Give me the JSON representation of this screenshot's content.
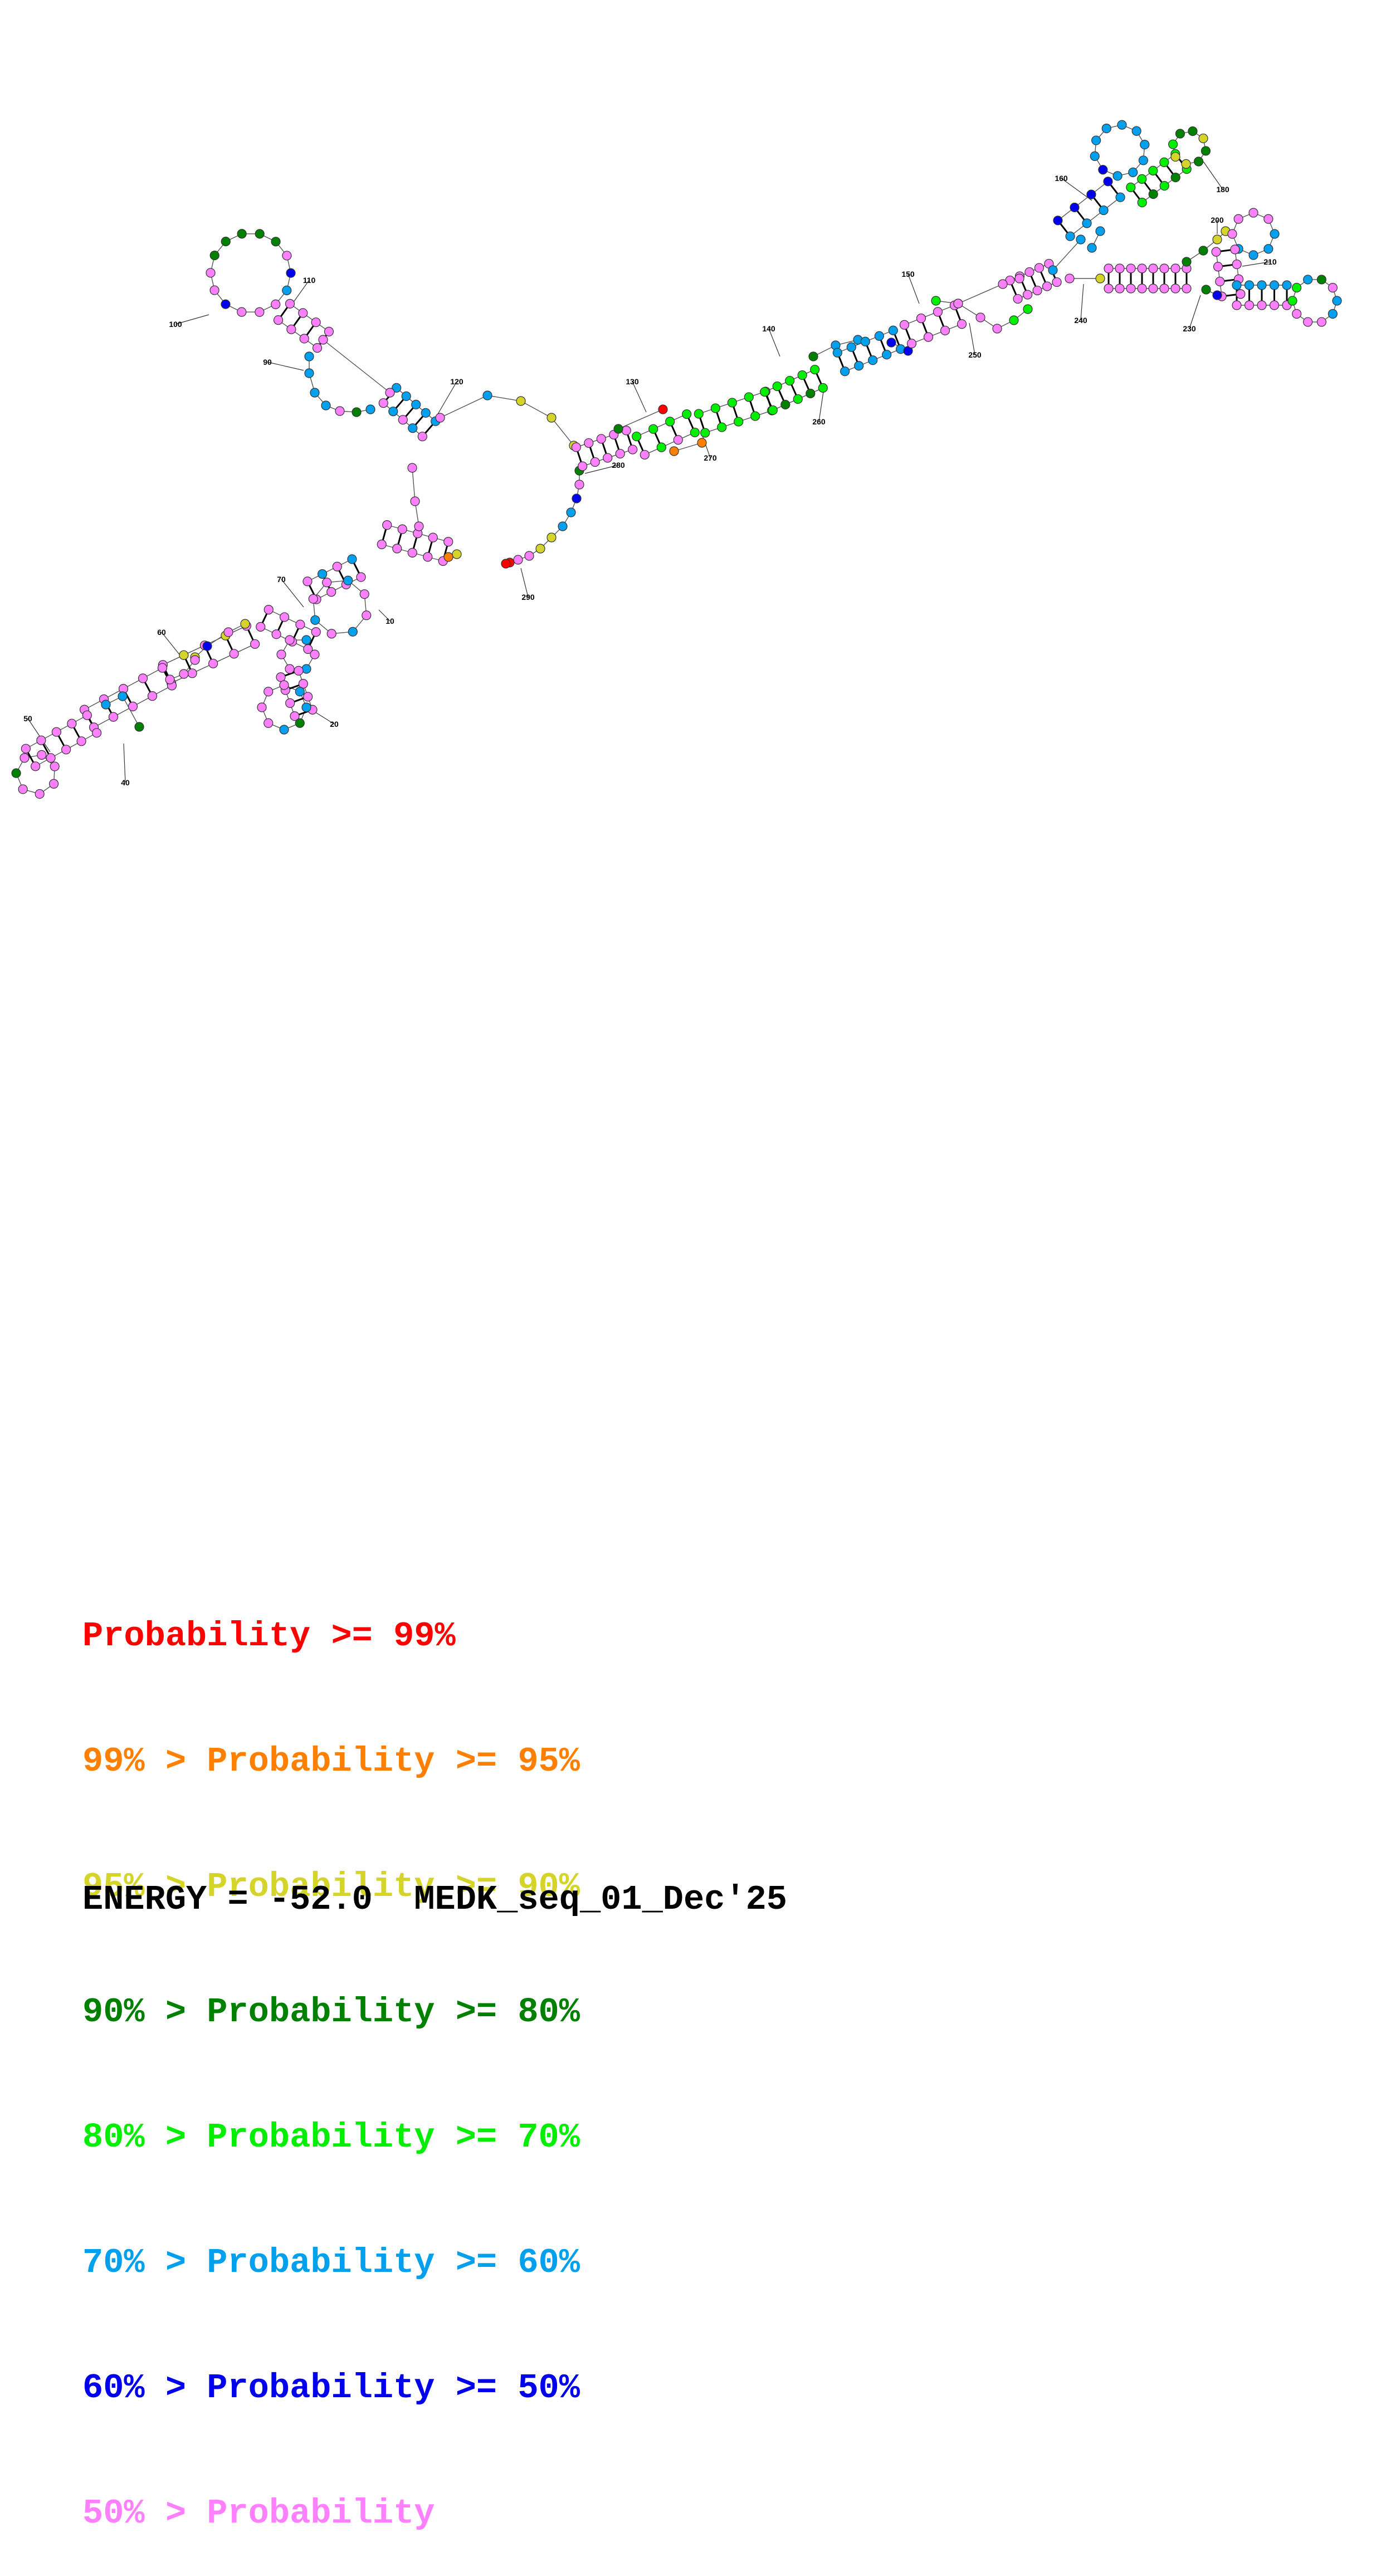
{
  "diagram": {
    "position_labels": [
      "10",
      "20",
      "40",
      "50",
      "60",
      "70",
      "90",
      "100",
      "110",
      "120",
      "130",
      "140",
      "150",
      "160",
      "180",
      "200",
      "210",
      "230",
      "240",
      "250",
      "260",
      "270",
      "280",
      "290"
    ],
    "probability_colors": {
      "p99": "#ff0000",
      "p95": "#ff8000",
      "p90": "#d4d42a",
      "p80": "#008000",
      "p70": "#00ee00",
      "p60": "#00a0ee",
      "p50": "#0000ee",
      "plow": "#ff80ff"
    }
  },
  "legend": {
    "rows": [
      {
        "prefix": "",
        "text": "Probability >= 99%",
        "color": "#ff0000"
      },
      {
        "prefix": "99% > ",
        "text": "Probability >= 95%",
        "color": "#ff8000"
      },
      {
        "prefix": "95% > ",
        "text": "Probability >= 90%",
        "color": "#d4d42a"
      },
      {
        "prefix": "90% > ",
        "text": "Probability >= 80%",
        "color": "#008000"
      },
      {
        "prefix": "80% > ",
        "text": "Probability >= 70%",
        "color": "#00ee00"
      },
      {
        "prefix": "70% > ",
        "text": "Probability >= 60%",
        "color": "#00a0ee"
      },
      {
        "prefix": "60% > ",
        "text": "Probability >= 50%",
        "color": "#0000ee"
      },
      {
        "prefix": "50% > ",
        "text": "Probability",
        "color": "#ff80ff"
      }
    ]
  },
  "footer": {
    "energy_text": "ENERGY = -52.0  MEDK_seq_01_Dec'25"
  }
}
